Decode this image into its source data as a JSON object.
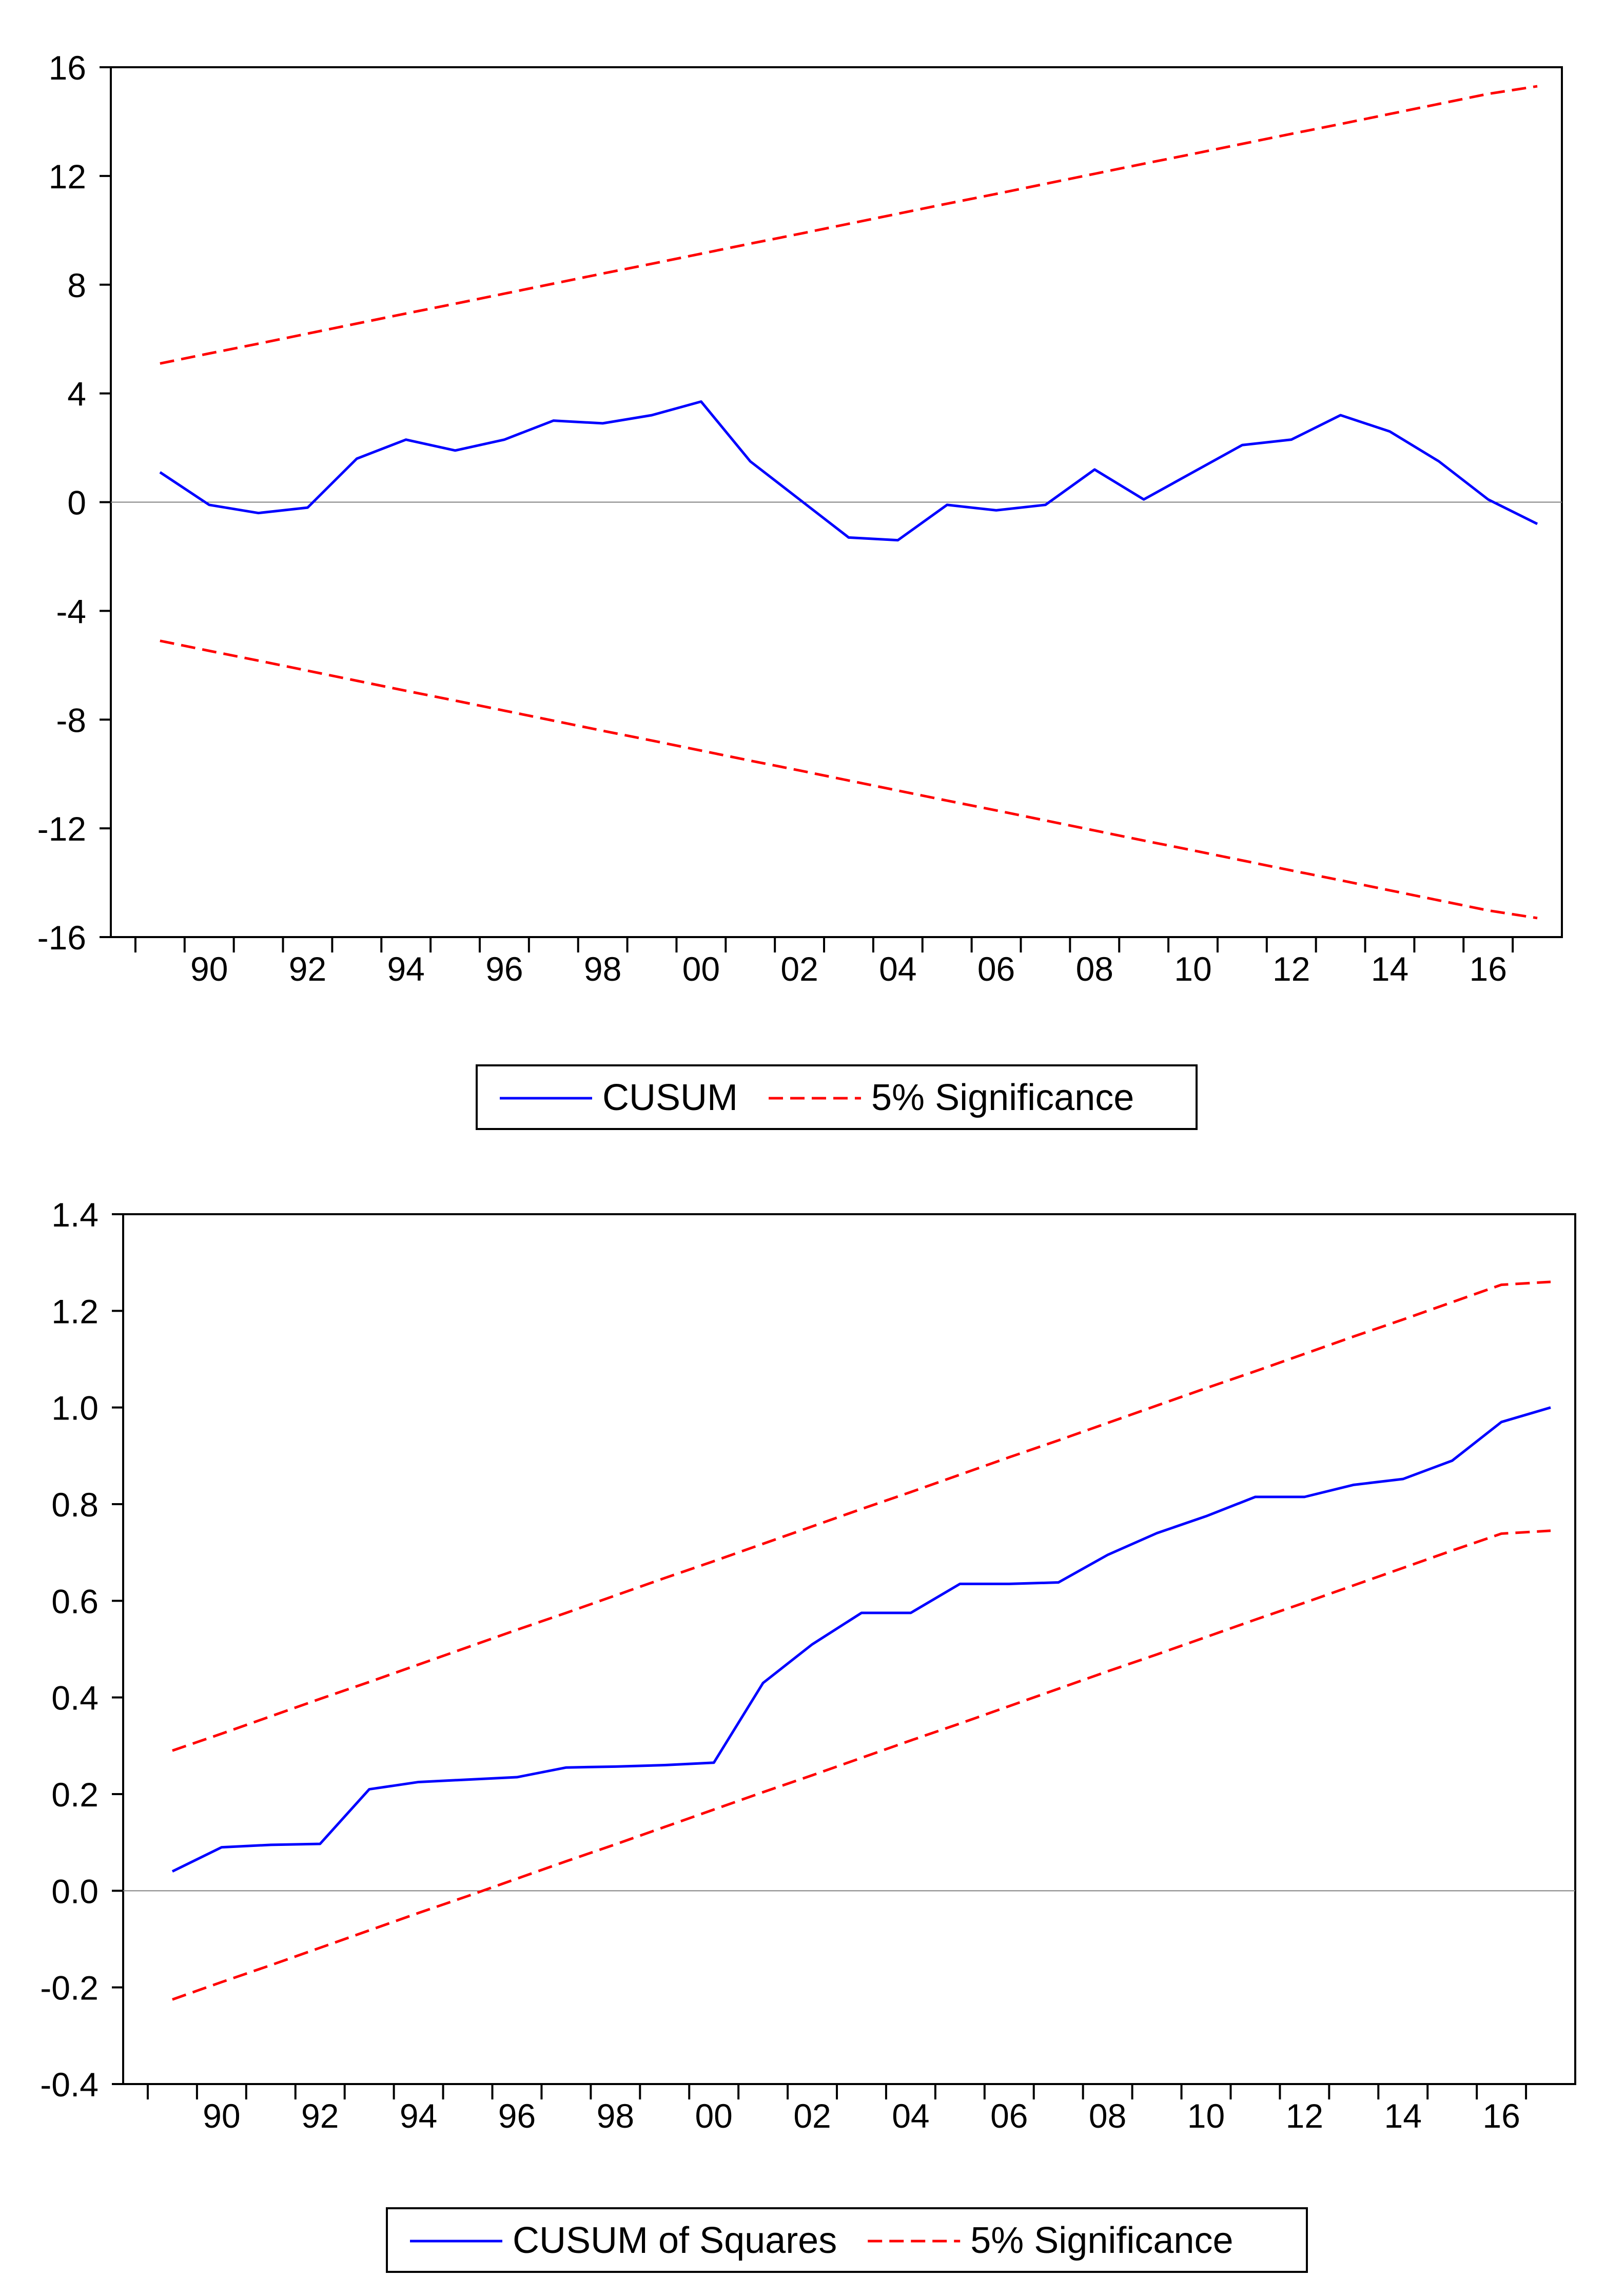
{
  "colors": {
    "cusum": "#0000ff",
    "significance": "#ff0000",
    "axis": "#000000",
    "zero_line": "#808080"
  },
  "chart_data": [
    {
      "type": "line",
      "title": "",
      "xlabel": "",
      "ylabel": "",
      "x": [
        1989,
        1990,
        1991,
        1992,
        1993,
        1994,
        1995,
        1996,
        1997,
        1998,
        1999,
        2000,
        2001,
        2002,
        2003,
        2004,
        2005,
        2006,
        2007,
        2008,
        2009,
        2010,
        2011,
        2012,
        2013,
        2014,
        2015,
        2016,
        2017
      ],
      "xlim": [
        1988,
        2017.5
      ],
      "x_ticks": [
        1990,
        1992,
        1994,
        1996,
        1998,
        2000,
        2002,
        2004,
        2006,
        2008,
        2010,
        2012,
        2014,
        2016
      ],
      "x_tick_labels": [
        "90",
        "92",
        "94",
        "96",
        "98",
        "00",
        "02",
        "04",
        "06",
        "08",
        "10",
        "12",
        "14",
        "16"
      ],
      "ylim": [
        -16,
        16
      ],
      "y_ticks": [
        -16,
        -12,
        -8,
        -4,
        0,
        4,
        8,
        12,
        16
      ],
      "y_tick_labels": [
        "-16",
        "-12",
        "-8",
        "-4",
        "0",
        "4",
        "8",
        "12",
        "16"
      ],
      "grid": false,
      "zero_line": true,
      "legend_position": "bottom-center",
      "series": [
        {
          "name": "CUSUM",
          "style": "solid",
          "values": [
            1.1,
            -0.1,
            -0.4,
            -0.2,
            1.6,
            2.3,
            1.9,
            2.3,
            3.0,
            2.9,
            3.2,
            3.7,
            1.5,
            0.1,
            -1.3,
            -1.4,
            -0.1,
            -0.3,
            -0.1,
            1.2,
            0.1,
            1.1,
            2.1,
            2.3,
            3.2,
            2.6,
            1.5,
            0.1,
            -0.8
          ]
        },
        {
          "name": "5% Significance",
          "style": "dashed",
          "values": [
            5.1,
            5.47,
            5.83,
            6.2,
            6.57,
            6.94,
            7.3,
            7.67,
            8.04,
            8.41,
            8.77,
            9.14,
            9.51,
            9.87,
            10.24,
            10.61,
            10.98,
            11.34,
            11.71,
            12.08,
            12.45,
            12.81,
            13.18,
            13.55,
            13.91,
            14.28,
            14.65,
            15.02,
            15.3
          ]
        },
        {
          "name": "",
          "style": "dashed",
          "values": [
            -5.1,
            -5.47,
            -5.83,
            -6.2,
            -6.57,
            -6.94,
            -7.3,
            -7.67,
            -8.04,
            -8.41,
            -8.77,
            -9.14,
            -9.51,
            -9.87,
            -10.24,
            -10.61,
            -10.98,
            -11.34,
            -11.71,
            -12.08,
            -12.45,
            -12.81,
            -13.18,
            -13.55,
            -13.91,
            -14.28,
            -14.65,
            -15.02,
            -15.3
          ]
        }
      ],
      "legend": {
        "entries": [
          {
            "label": "CUSUM",
            "style": "solid"
          },
          {
            "label": "5% Significance",
            "style": "dashed"
          }
        ]
      }
    },
    {
      "type": "line",
      "title": "",
      "xlabel": "",
      "ylabel": "",
      "x": [
        1989,
        1990,
        1991,
        1992,
        1993,
        1994,
        1995,
        1996,
        1997,
        1998,
        1999,
        2000,
        2001,
        2002,
        2003,
        2004,
        2005,
        2006,
        2007,
        2008,
        2009,
        2010,
        2011,
        2012,
        2013,
        2014,
        2015,
        2016,
        2017
      ],
      "xlim": [
        1988,
        2017.5
      ],
      "x_ticks": [
        1990,
        1992,
        1994,
        1996,
        1998,
        2000,
        2002,
        2004,
        2006,
        2008,
        2010,
        2012,
        2014,
        2016
      ],
      "x_tick_labels": [
        "90",
        "92",
        "94",
        "96",
        "98",
        "00",
        "02",
        "04",
        "06",
        "08",
        "10",
        "12",
        "14",
        "16"
      ],
      "ylim": [
        -0.4,
        1.4
      ],
      "y_ticks": [
        -0.4,
        -0.2,
        0.0,
        0.2,
        0.4,
        0.6,
        0.8,
        1.0,
        1.2,
        1.4
      ],
      "y_tick_labels": [
        "-0.4",
        "-0.2",
        "0.0",
        "0.2",
        "0.4",
        "0.6",
        "0.8",
        "1.0",
        "1.2",
        "1.4"
      ],
      "grid": false,
      "zero_line": true,
      "legend_position": "bottom-center",
      "series": [
        {
          "name": "CUSUM of Squares",
          "style": "solid",
          "values": [
            0.04,
            0.09,
            0.095,
            0.097,
            0.21,
            0.225,
            0.23,
            0.235,
            0.255,
            0.257,
            0.26,
            0.265,
            0.43,
            0.51,
            0.575,
            0.575,
            0.635,
            0.635,
            0.638,
            0.695,
            0.74,
            0.775,
            0.815,
            0.815,
            0.84,
            0.852,
            0.89,
            0.97,
            1.0
          ]
        },
        {
          "name": "5% Significance",
          "style": "dashed",
          "values": [
            0.29,
            0.325,
            0.361,
            0.397,
            0.432,
            0.468,
            0.504,
            0.54,
            0.575,
            0.611,
            0.647,
            0.682,
            0.718,
            0.754,
            0.79,
            0.825,
            0.861,
            0.897,
            0.932,
            0.968,
            1.004,
            1.04,
            1.075,
            1.111,
            1.147,
            1.182,
            1.218,
            1.254,
            1.26
          ]
        },
        {
          "name": "",
          "style": "dashed",
          "values": [
            -0.225,
            -0.189,
            -0.154,
            -0.118,
            -0.082,
            -0.046,
            -0.011,
            0.025,
            0.061,
            0.096,
            0.132,
            0.168,
            0.204,
            0.239,
            0.275,
            0.311,
            0.346,
            0.382,
            0.418,
            0.454,
            0.489,
            0.525,
            0.561,
            0.596,
            0.632,
            0.668,
            0.704,
            0.739,
            0.745
          ]
        }
      ],
      "legend": {
        "entries": [
          {
            "label": "CUSUM of Squares",
            "style": "solid"
          },
          {
            "label": "5% Significance",
            "style": "dashed"
          }
        ]
      }
    }
  ]
}
